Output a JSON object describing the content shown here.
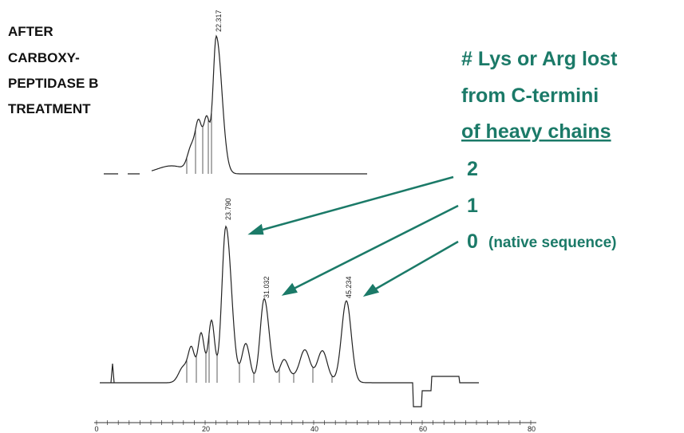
{
  "left_label": {
    "lines": [
      "AFTER",
      "CARBOXY-",
      "PEPTIDASE B",
      "TREATMENT"
    ]
  },
  "legend": {
    "title_lines": [
      "# Lys or Arg lost",
      "from C-termini",
      "of heavy chains"
    ],
    "items": [
      {
        "number": "2"
      },
      {
        "number": "1"
      },
      {
        "number": "0",
        "note": "(native sequence)"
      }
    ]
  },
  "peaks": {
    "top": "22.317",
    "bottom": [
      "23.790",
      "31.032",
      "45.234"
    ]
  },
  "axis": {
    "ticks": [
      "0",
      "20",
      "40",
      "60",
      "80"
    ]
  }
}
